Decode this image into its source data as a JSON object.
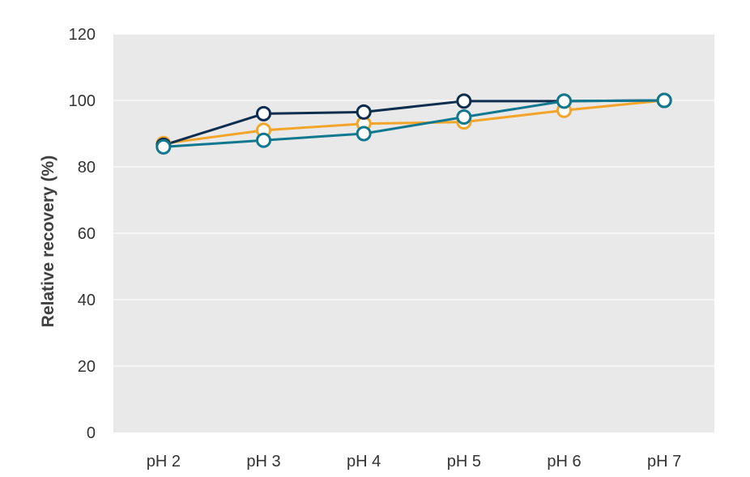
{
  "chart_data": {
    "type": "line",
    "title": "",
    "xlabel": "",
    "ylabel": "Relative recovery (%)",
    "categories": [
      "pH 2",
      "pH 3",
      "pH 4",
      "pH 5",
      "pH 6",
      "pH 7"
    ],
    "ylim": [
      0,
      120
    ],
    "yticks": [
      "0",
      "20",
      "40",
      "60",
      "80",
      "100",
      "120"
    ],
    "grid": true,
    "legend": "none",
    "colors": {
      "plot_background": "#e9e9e9",
      "gridline": "#ffffff"
    },
    "series": [
      {
        "color": "#f2a529",
        "values": [
          87,
          91,
          93,
          93.5,
          97,
          100
        ]
      },
      {
        "color": "#0d2d4e",
        "values": [
          86.5,
          96,
          96.5,
          99.8,
          99.8,
          100
        ]
      },
      {
        "color": "#0f7890",
        "values": [
          86,
          88,
          90,
          95,
          99.8,
          100
        ]
      }
    ]
  }
}
